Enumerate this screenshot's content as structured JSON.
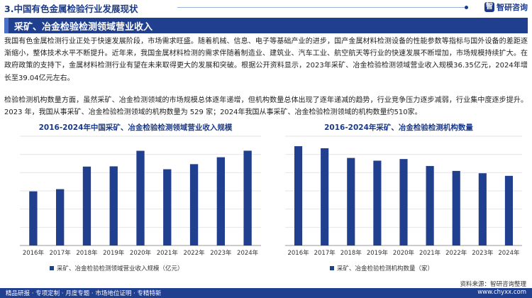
{
  "header": {
    "section_title": "3.中国有色金属检验行业发展现状",
    "logo_text": "智研咨询"
  },
  "banner": {
    "title": "采矿、冶金检验检测领域营业收入"
  },
  "paragraphs": {
    "p1": "我国有色金属检测行业正处于快速发展阶段，市场需求旺盛。随着机械、信息、电子等基础产业的进步，国产金属材料检测设备的性能参数等指标与国外设备的差距逐渐缩小，整体技术水平不断提升。近年来，我国金属材料检测的需求伴随着制造业、建筑业、汽车工业、航空航天等行业的快速发展不断增加，市场规模持续扩大。在政府政策的支持下，金属材料检测行业有望在未来取得更大的发展和突破。根据公开资料显示，2023年采矿、冶金检验检测领域营业收入规模36.35亿元，2024年增长至39.04亿元左右。",
    "p2": "检验检测机构数量方面，虽然采矿、冶金检测领域的市场规模总体逐年递增，但机构数量总体出现了逐年递减的趋势，行业竞争压力逐步减弱，行业集中度逐步提升。2023 年，我国从事采矿、冶金检验检测领域的机构数量为 529 家；2024年我国从事采矿、冶金检验检测领域的机构数量约510家。"
  },
  "colors": {
    "accent": "#213f8f",
    "bar": "#213f8f"
  },
  "chart_data": [
    {
      "type": "bar",
      "title": "2016-2024年中国采矿、冶金检验检测领域营业收入规模",
      "categories": [
        "2016年",
        "2017年",
        "2018年",
        "2019年",
        "2020年",
        "2021年",
        "2022年",
        "2023年",
        "2024年"
      ],
      "series": [
        {
          "name": "采矿、冶金检验检测领域营业收入规模（亿元）",
          "values": [
            22.3,
            23.2,
            32.5,
            32.6,
            39.0,
            31.4,
            33.5,
            36.35,
            39.04
          ]
        }
      ],
      "ylim": [
        0,
        45
      ],
      "grid": true,
      "legend_position": "bottom"
    },
    {
      "type": "bar",
      "title": "2016-2024年采矿、冶金检验检测机构数量",
      "categories": [
        "2016年",
        "2017年",
        "2018年",
        "2019年",
        "2020年",
        "2021年",
        "2022年",
        "2023年",
        "2024年"
      ],
      "series": [
        {
          "name": "采矿、冶金检验检测机构数量（家）",
          "values": [
            727,
            712,
            641,
            621,
            633,
            582,
            546,
            529,
            510
          ]
        }
      ],
      "ylim": [
        0,
        800
      ],
      "grid": true,
      "legend_position": "bottom"
    }
  ],
  "source": "资料来源：智研咨询整理",
  "footer": {
    "left": "精品研报 · 专项定制 · 月度专题 · 市场地位证明 · 专精特新",
    "right": "www.chyxx.com"
  }
}
